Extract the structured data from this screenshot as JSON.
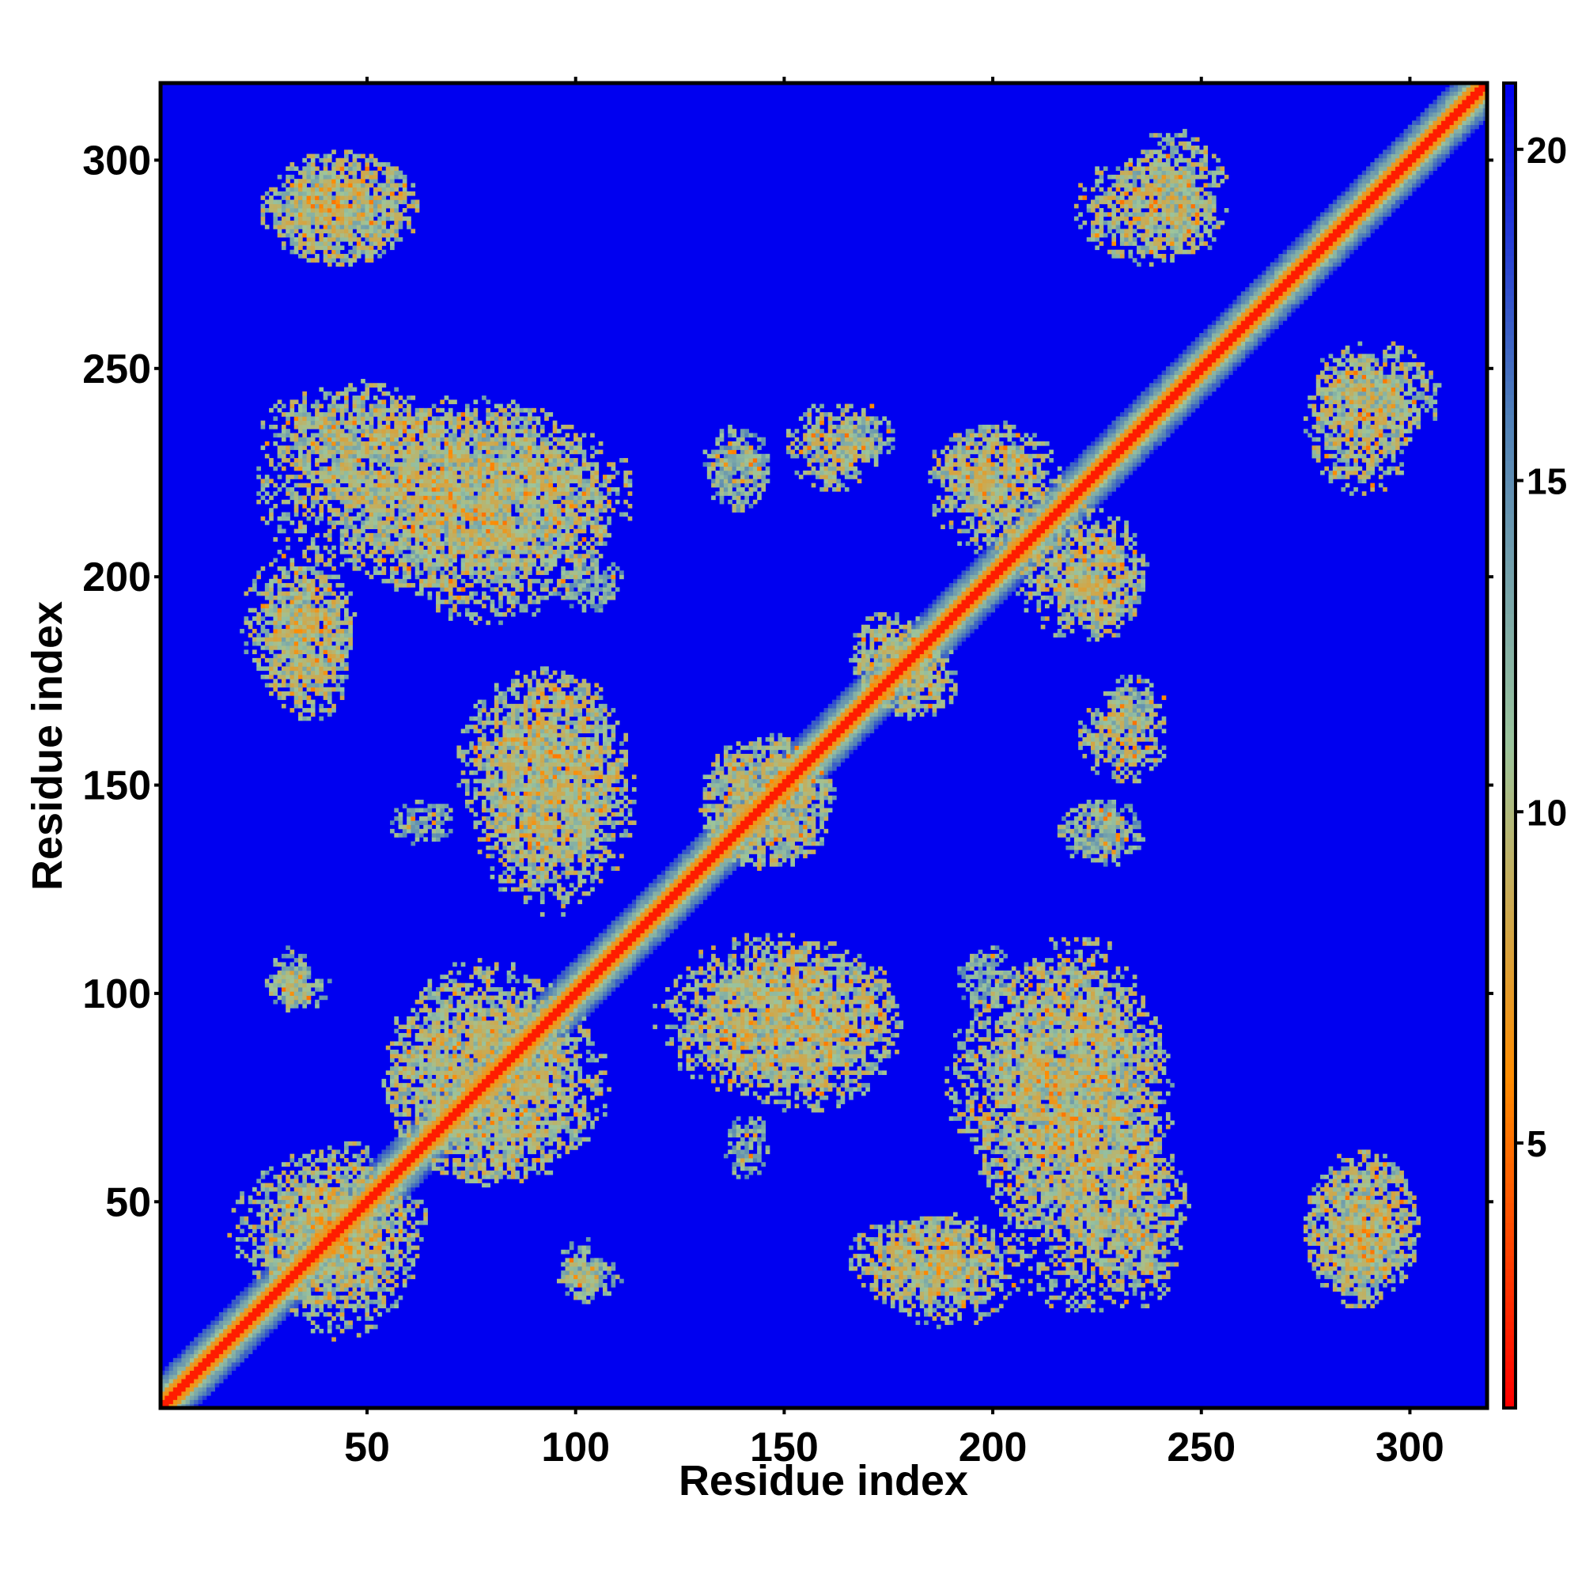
{
  "chart_data": {
    "type": "heatmap",
    "title": "",
    "xlabel": "Residue index",
    "ylabel": "Residue index",
    "n_residues": 318,
    "xlim": [
      1,
      318
    ],
    "ylim": [
      1,
      318
    ],
    "x_ticks": [
      50,
      100,
      150,
      200,
      250,
      300
    ],
    "y_ticks": [
      50,
      100,
      150,
      200,
      250,
      300
    ],
    "x_tick_labels": [
      "50",
      "100",
      "150",
      "200",
      "250",
      "300"
    ],
    "y_tick_labels": [
      "50",
      "100",
      "150",
      "200",
      "250",
      "300"
    ],
    "colorbar": {
      "range": [
        1,
        21
      ],
      "ticks": [
        5,
        10,
        15,
        20
      ],
      "tick_labels": [
        "5",
        "10",
        "15",
        "20"
      ],
      "colors": [
        "#ff0000",
        "#ff8c00",
        "#9cc59c",
        "#4f7fb8",
        "#0000f0"
      ]
    },
    "background_value": 21,
    "diagonal_band": {
      "core_value": 2,
      "inner_width": 3,
      "outer_width": 8
    },
    "contact_regions": [
      {
        "x": [
          25,
          60
        ],
        "y": [
          18,
          62
        ],
        "value": 11
      },
      {
        "x": [
          55,
          100
        ],
        "y": [
          55,
          105
        ],
        "value": 11
      },
      {
        "x": [
          25,
          40
        ],
        "y": [
          95,
          105
        ],
        "value": 12
      },
      {
        "x": [
          95,
          110
        ],
        "y": [
          25,
          35
        ],
        "value": 12
      },
      {
        "x": [
          130,
          175
        ],
        "y": [
          72,
          110
        ],
        "value": 11
      },
      {
        "x": [
          135,
          145
        ],
        "y": [
          55,
          70
        ],
        "value": 13
      },
      {
        "x": [
          75,
          112
        ],
        "y": [
          120,
          175
        ],
        "value": 11
      },
      {
        "x": [
          130,
          160
        ],
        "y": [
          130,
          160
        ],
        "value": 11
      },
      {
        "x": [
          20,
          45
        ],
        "y": [
          170,
          205
        ],
        "value": 11
      },
      {
        "x": [
          25,
          110
        ],
        "y": [
          198,
          240
        ],
        "value": 11
      },
      {
        "x": [
          130,
          145
        ],
        "y": [
          215,
          230
        ],
        "value": 12
      },
      {
        "x": [
          150,
          170
        ],
        "y": [
          220,
          240
        ],
        "value": 11
      },
      {
        "x": [
          165,
          185
        ],
        "y": [
          170,
          190
        ],
        "value": 11
      },
      {
        "x": [
          185,
          215
        ],
        "y": [
          205,
          235
        ],
        "value": 11
      },
      {
        "x": [
          215,
          235
        ],
        "y": [
          185,
          210
        ],
        "value": 11
      },
      {
        "x": [
          225,
          240
        ],
        "y": [
          160,
          175
        ],
        "value": 12
      },
      {
        "x": [
          220,
          235
        ],
        "y": [
          130,
          145
        ],
        "value": 13
      },
      {
        "x": [
          190,
          240
        ],
        "y": [
          50,
          105
        ],
        "value": 11
      },
      {
        "x": [
          165,
          200
        ],
        "y": [
          25,
          45
        ],
        "value": 11
      },
      {
        "x": [
          220,
          245
        ],
        "y": [
          25,
          65
        ],
        "value": 11
      },
      {
        "x": [
          230,
          255
        ],
        "y": [
          275,
          305
        ],
        "value": 11
      },
      {
        "x": [
          275,
          300
        ],
        "y": [
          220,
          250
        ],
        "value": 11
      },
      {
        "x": [
          275,
          300
        ],
        "y": [
          25,
          60
        ],
        "value": 11
      },
      {
        "x": [
          25,
          60
        ],
        "y": [
          275,
          300
        ],
        "value": 11
      },
      {
        "x": [
          190,
          205
        ],
        "y": [
          95,
          110
        ],
        "value": 13
      }
    ]
  }
}
